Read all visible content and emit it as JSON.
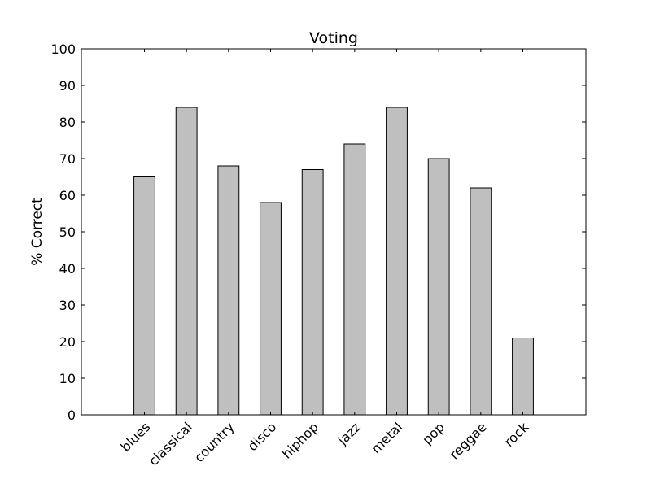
{
  "chart_data": {
    "type": "bar",
    "title": "Voting",
    "xlabel": "",
    "ylabel": "% Correct",
    "categories": [
      "blues",
      "classical",
      "country",
      "disco",
      "hiphop",
      "jazz",
      "metal",
      "pop",
      "reggae",
      "rock"
    ],
    "values": [
      65,
      84,
      68,
      58,
      67,
      74,
      84,
      70,
      62,
      21
    ],
    "ylim": [
      0,
      100
    ],
    "yticks": [
      0,
      10,
      20,
      30,
      40,
      50,
      60,
      70,
      80,
      90,
      100
    ],
    "grid": false,
    "legend": "none",
    "bar_color": "#bfbfbf",
    "edge_color": "#000000"
  }
}
